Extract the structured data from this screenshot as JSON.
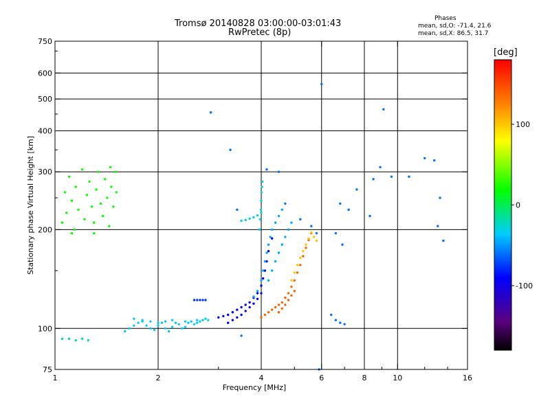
{
  "title": {
    "line1": "Tromsø 20140828 03:00:00-03:01:43",
    "line2": "RwPretec (8p)"
  },
  "phases": {
    "heading": "Phases",
    "o_label": "mean, sd,O:",
    "o_values": "-71.4, 21.6",
    "x_label": "mean, sd,X:",
    "x_values": "86.5, 31.7"
  },
  "chart_data": {
    "type": "scatter",
    "title": "Tromsø 20140828 03:00:00-03:01:43",
    "subtitle": "RwPretec (8p)",
    "xlabel": "Frequency [MHz]",
    "ylabel": "Stationary phase Virtual Height [km]",
    "x_scale": "log",
    "y_scale": "log",
    "xlim": [
      1,
      16
    ],
    "ylim": [
      75,
      750
    ],
    "x_ticks": [
      1,
      2,
      4,
      6,
      8,
      10,
      16
    ],
    "x_tick_labels": [
      "1",
      "2",
      "4",
      "6",
      "8",
      "10",
      "16"
    ],
    "y_ticks": [
      75,
      100,
      200,
      300,
      400,
      500,
      600,
      750
    ],
    "y_tick_labels": [
      "75",
      "100",
      "200",
      "300",
      "400",
      "500",
      "600",
      "750"
    ],
    "grid_x": [
      2,
      4,
      6,
      8,
      10
    ],
    "grid_y": [
      100,
      200,
      300,
      400,
      500,
      600
    ],
    "colorbar": {
      "label": "[deg]",
      "range": [
        -180,
        180
      ],
      "ticks": [
        100,
        0,
        -100
      ],
      "tick_labels": [
        "100",
        "0",
        "-100"
      ]
    },
    "point_groups": [
      {
        "name": "low-freq-lower",
        "color_phase": -20,
        "points": [
          [
            1.05,
            93
          ],
          [
            1.1,
            93
          ],
          [
            1.15,
            92
          ],
          [
            1.2,
            93
          ],
          [
            1.25,
            92
          ]
        ]
      },
      {
        "name": "low-freq-patch",
        "color_phase": 20,
        "points": [
          [
            1.05,
            210
          ],
          [
            1.07,
            260
          ],
          [
            1.08,
            225
          ],
          [
            1.1,
            290
          ],
          [
            1.12,
            245
          ],
          [
            1.14,
            200
          ],
          [
            1.15,
            270
          ],
          [
            1.17,
            230
          ],
          [
            1.2,
            305
          ],
          [
            1.22,
            215
          ],
          [
            1.24,
            255
          ],
          [
            1.26,
            280
          ],
          [
            1.28,
            235
          ],
          [
            1.3,
            210
          ],
          [
            1.32,
            265
          ],
          [
            1.34,
            300
          ],
          [
            1.36,
            240
          ],
          [
            1.38,
            220
          ],
          [
            1.4,
            285
          ],
          [
            1.42,
            250
          ],
          [
            1.44,
            205
          ],
          [
            1.46,
            270
          ],
          [
            1.48,
            235
          ],
          [
            1.5,
            300
          ],
          [
            1.51,
            260
          ],
          [
            1.12,
            195
          ],
          [
            1.3,
            195
          ],
          [
            1.45,
            310
          ]
        ]
      },
      {
        "name": "E-layer-trace",
        "color_phase": -35,
        "points": [
          [
            1.6,
            98
          ],
          [
            1.65,
            100
          ],
          [
            1.7,
            102
          ],
          [
            1.75,
            104
          ],
          [
            1.8,
            105
          ],
          [
            1.85,
            102
          ],
          [
            1.9,
            100
          ],
          [
            1.95,
            99
          ],
          [
            2.0,
            102
          ],
          [
            2.05,
            104
          ],
          [
            2.1,
            100
          ],
          [
            2.15,
            98
          ],
          [
            2.2,
            101
          ],
          [
            2.25,
            104
          ],
          [
            2.3,
            103
          ],
          [
            2.35,
            100
          ],
          [
            2.4,
            101
          ],
          [
            2.45,
            104
          ],
          [
            2.5,
            105
          ],
          [
            2.55,
            103
          ],
          [
            2.6,
            104
          ],
          [
            2.65,
            105
          ],
          [
            2.7,
            106
          ],
          [
            2.75,
            107
          ],
          [
            2.8,
            106
          ],
          [
            1.7,
            107
          ],
          [
            1.8,
            106
          ],
          [
            1.9,
            105
          ],
          [
            2.0,
            104
          ],
          [
            2.1,
            105
          ],
          [
            2.2,
            106
          ],
          [
            2.4,
            105
          ],
          [
            2.6,
            106
          ]
        ]
      },
      {
        "name": "E-layer-extra",
        "color_phase": -75,
        "points": [
          [
            2.55,
            122
          ],
          [
            2.6,
            122
          ],
          [
            2.65,
            122
          ],
          [
            2.7,
            122
          ],
          [
            2.75,
            122
          ]
        ]
      },
      {
        "name": "F-layer-O-trace",
        "color_phase": -90,
        "points": [
          [
            3.0,
            108
          ],
          [
            3.1,
            109
          ],
          [
            3.2,
            110
          ],
          [
            3.3,
            112
          ],
          [
            3.4,
            114
          ],
          [
            3.5,
            116
          ],
          [
            3.6,
            118
          ],
          [
            3.7,
            120
          ],
          [
            3.8,
            124
          ],
          [
            3.9,
            128
          ],
          [
            4.0,
            135
          ],
          [
            4.05,
            142
          ],
          [
            4.1,
            150
          ],
          [
            4.15,
            160
          ],
          [
            4.2,
            172
          ],
          [
            4.3,
            188
          ],
          [
            3.2,
            104
          ],
          [
            3.3,
            106
          ],
          [
            3.4,
            108
          ],
          [
            3.5,
            110
          ],
          [
            3.6,
            113
          ],
          [
            3.7,
            116
          ],
          [
            3.8,
            119
          ],
          [
            3.9,
            123
          ],
          [
            4.0,
            128
          ]
        ]
      },
      {
        "name": "F-layer-O-outer",
        "color_phase": -45,
        "points": [
          [
            3.8,
            125
          ],
          [
            3.9,
            130
          ],
          [
            4.0,
            140
          ],
          [
            4.05,
            150
          ],
          [
            4.1,
            160
          ],
          [
            4.15,
            170
          ],
          [
            4.2,
            180
          ],
          [
            4.25,
            190
          ],
          [
            4.3,
            200
          ],
          [
            4.4,
            210
          ],
          [
            4.5,
            220
          ],
          [
            4.6,
            230
          ],
          [
            4.2,
            140
          ],
          [
            4.3,
            150
          ],
          [
            4.4,
            160
          ],
          [
            4.5,
            170
          ],
          [
            4.6,
            180
          ],
          [
            4.7,
            190
          ],
          [
            4.8,
            200
          ],
          [
            4.9,
            210
          ]
        ]
      },
      {
        "name": "spread-F-vertical",
        "color_phase": -30,
        "points": [
          [
            3.95,
            200
          ],
          [
            3.97,
            215
          ],
          [
            3.99,
            230
          ],
          [
            4.0,
            245
          ],
          [
            4.01,
            260
          ],
          [
            4.02,
            270
          ],
          [
            4.03,
            280
          ],
          [
            4.0,
            225
          ],
          [
            3.9,
            221
          ],
          [
            3.8,
            218
          ],
          [
            3.7,
            216
          ],
          [
            3.6,
            214
          ],
          [
            3.5,
            213
          ]
        ]
      },
      {
        "name": "F-layer-X-trace",
        "color_phase": 140,
        "points": [
          [
            4.0,
            108
          ],
          [
            4.1,
            110
          ],
          [
            4.2,
            112
          ],
          [
            4.3,
            114
          ],
          [
            4.4,
            116
          ],
          [
            4.5,
            118
          ],
          [
            4.6,
            120
          ],
          [
            4.7,
            124
          ],
          [
            4.8,
            128
          ],
          [
            4.9,
            134
          ],
          [
            5.0,
            140
          ],
          [
            5.1,
            148
          ],
          [
            5.2,
            156
          ],
          [
            5.3,
            166
          ],
          [
            5.4,
            176
          ],
          [
            5.5,
            186
          ],
          [
            5.6,
            195
          ],
          [
            4.5,
            112
          ],
          [
            4.6,
            115
          ],
          [
            4.7,
            118
          ],
          [
            4.8,
            122
          ],
          [
            4.9,
            126
          ],
          [
            5.0,
            130
          ]
        ]
      },
      {
        "name": "F-layer-X-yellow",
        "color_phase": 100,
        "points": [
          [
            4.9,
            140
          ],
          [
            5.0,
            148
          ],
          [
            5.1,
            156
          ],
          [
            5.2,
            164
          ],
          [
            5.3,
            172
          ],
          [
            5.4,
            180
          ],
          [
            5.5,
            188
          ],
          [
            5.6,
            196
          ],
          [
            5.7,
            190
          ],
          [
            5.8,
            185
          ]
        ]
      },
      {
        "name": "scattered-high",
        "color_phase": -60,
        "points": [
          [
            2.85,
            455
          ],
          [
            3.25,
            350
          ],
          [
            4.15,
            305
          ],
          [
            4.5,
            300
          ],
          [
            3.4,
            230
          ],
          [
            4.7,
            240
          ],
          [
            5.2,
            215
          ],
          [
            5.6,
            205
          ],
          [
            6.6,
            195
          ],
          [
            6.9,
            180
          ],
          [
            6.8,
            240
          ],
          [
            7.2,
            230
          ],
          [
            7.6,
            265
          ],
          [
            8.3,
            220
          ],
          [
            8.5,
            285
          ],
          [
            8.9,
            310
          ],
          [
            9.6,
            290
          ],
          [
            10.8,
            290
          ],
          [
            12.0,
            330
          ],
          [
            12.8,
            325
          ],
          [
            13.3,
            250
          ],
          [
            13.6,
            185
          ],
          [
            13.1,
            205
          ],
          [
            9.1,
            465
          ],
          [
            6.0,
            555
          ],
          [
            5.8,
            195
          ],
          [
            6.4,
            110
          ],
          [
            6.6,
            106
          ],
          [
            6.8,
            104
          ],
          [
            7.0,
            103
          ],
          [
            3.5,
            95
          ],
          [
            5.9,
            75
          ]
        ]
      }
    ]
  }
}
